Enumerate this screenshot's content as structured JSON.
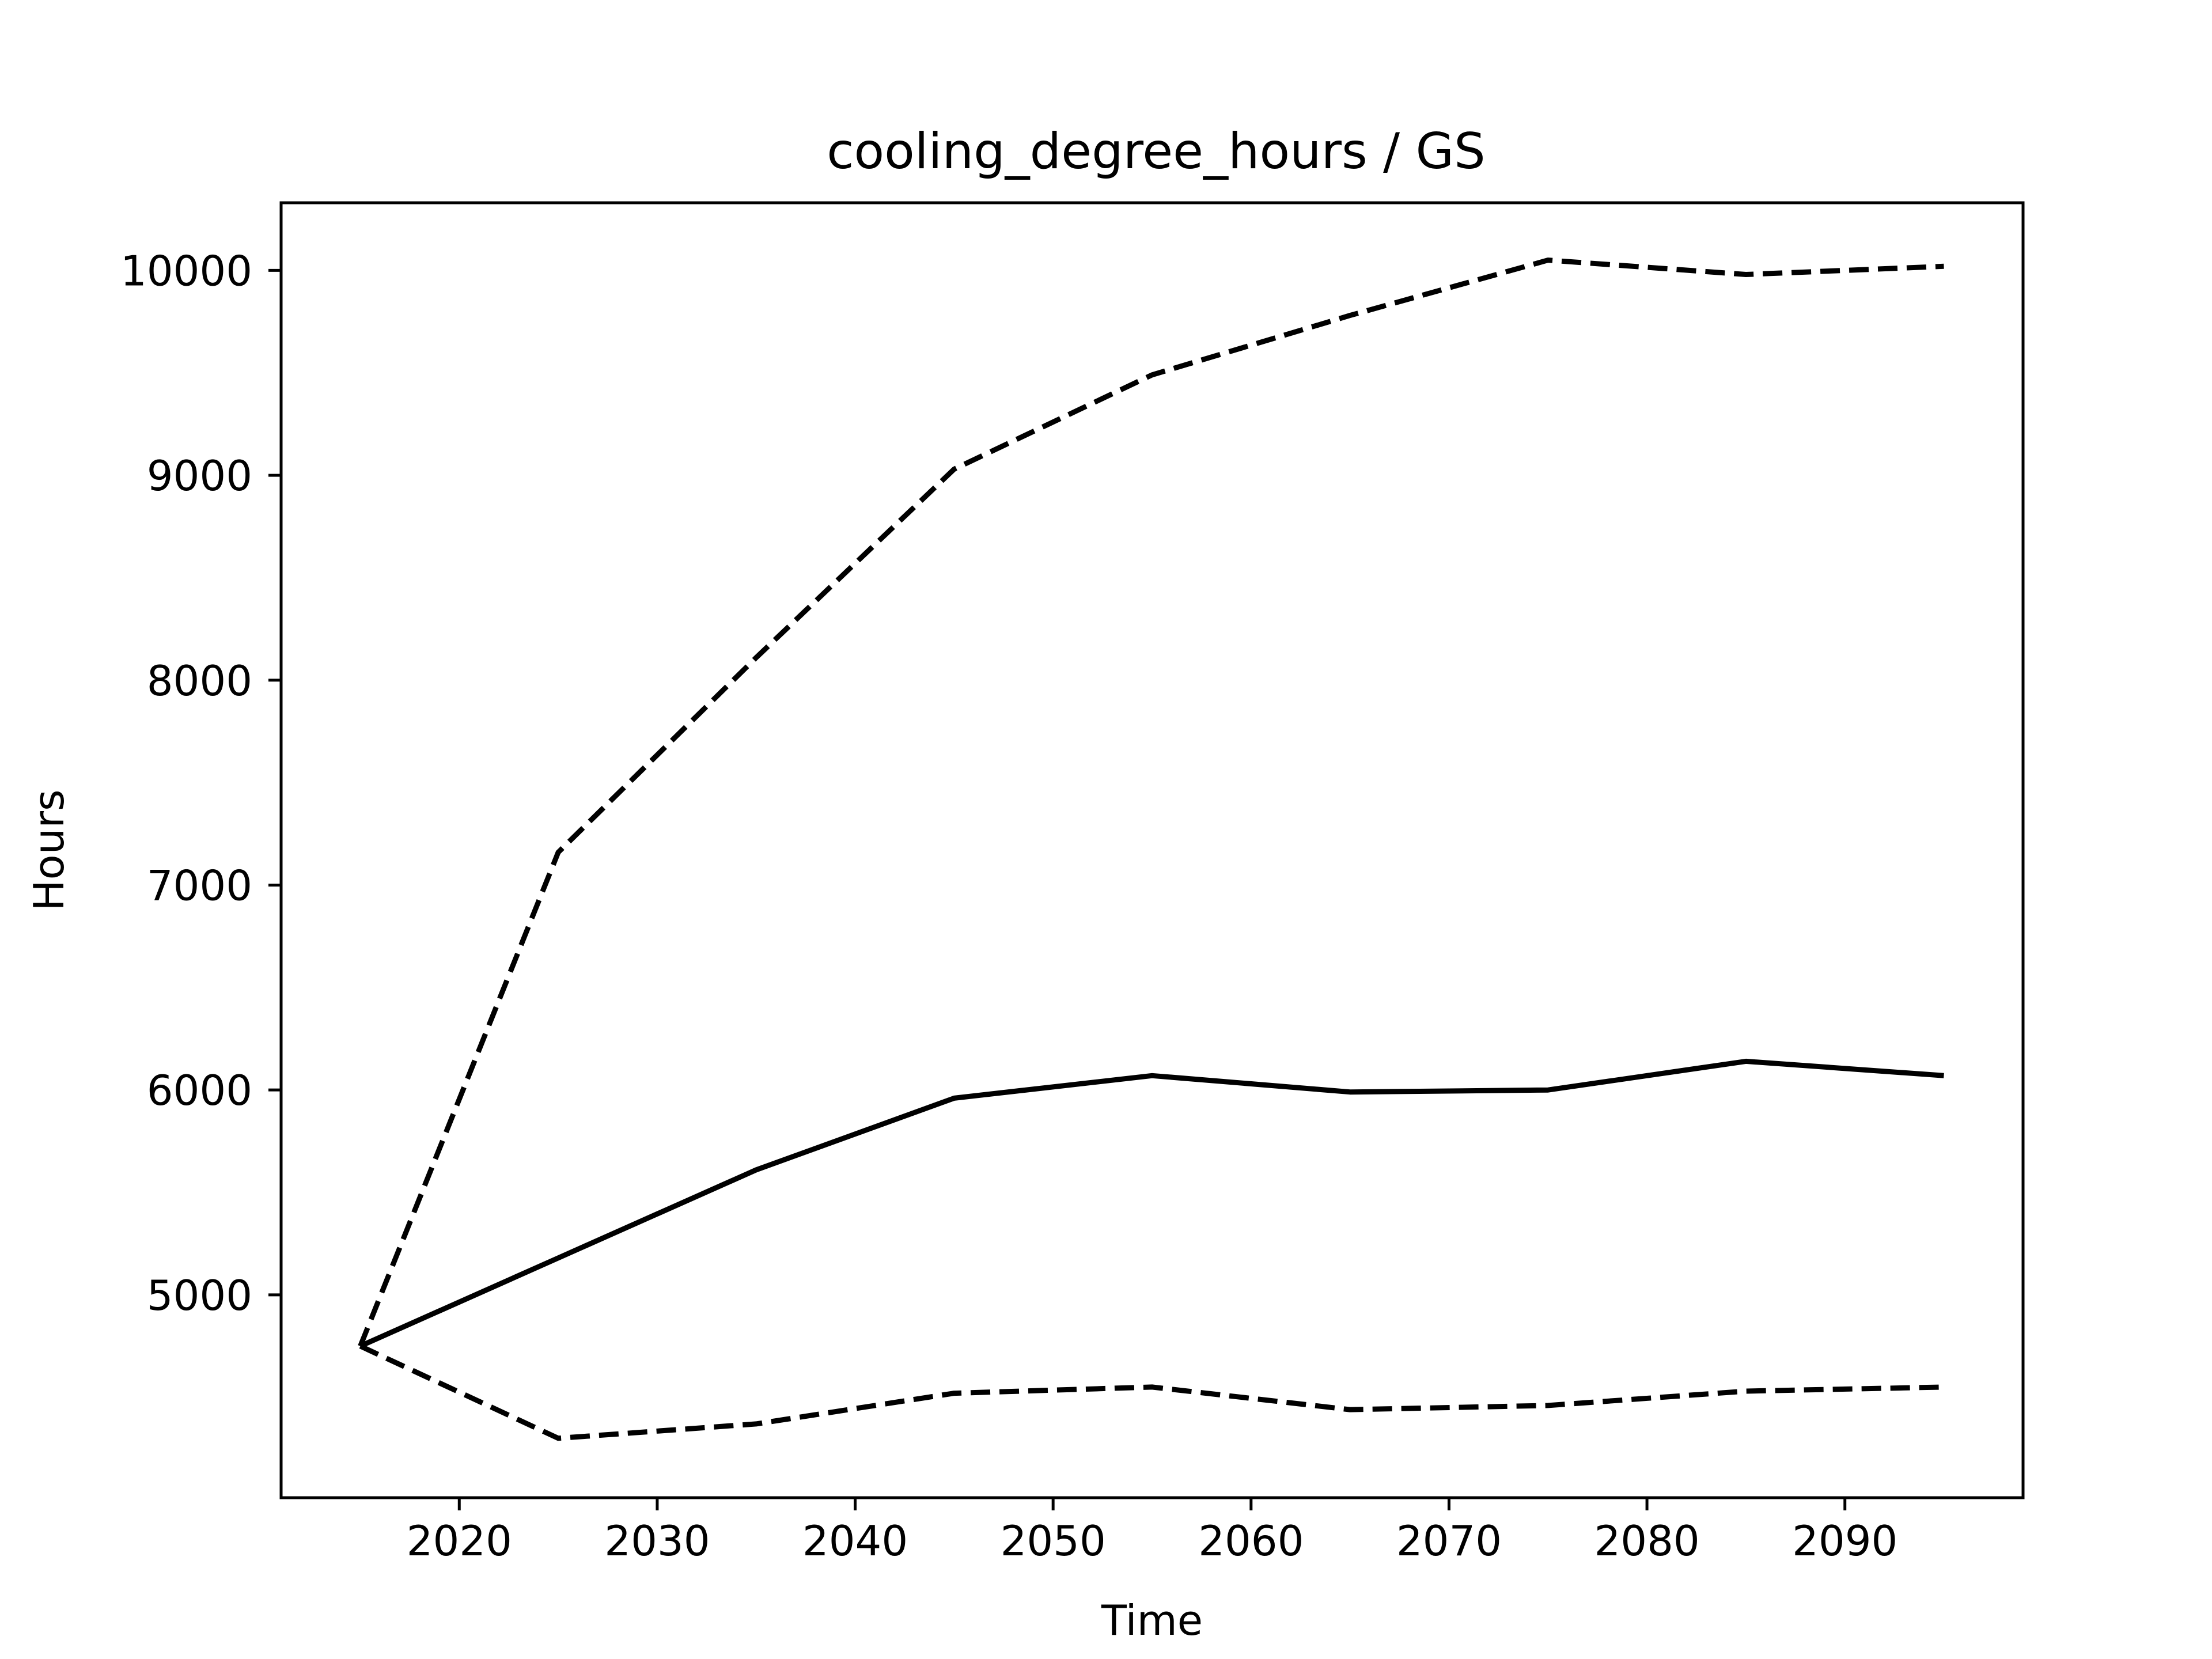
{
  "chart_data": {
    "type": "line",
    "title": "cooling_degree_hours / GS",
    "xlabel": "Time",
    "ylabel": "Hours",
    "xlim": [
      2011,
      2099
    ],
    "ylim": [
      4010,
      10330
    ],
    "x_ticks": [
      2020,
      2030,
      2040,
      2050,
      2060,
      2070,
      2080,
      2090
    ],
    "y_ticks": [
      5000,
      6000,
      7000,
      8000,
      9000,
      10000
    ],
    "x_tick_labels": [
      "2020",
      "2030",
      "2040",
      "2050",
      "2060",
      "2070",
      "2080",
      "2090"
    ],
    "y_tick_labels": [
      "5000",
      "6000",
      "7000",
      "8000",
      "9000",
      "10000"
    ],
    "grid": false,
    "legend": "none",
    "x": [
      2015,
      2025,
      2035,
      2045,
      2055,
      2065,
      2075,
      2085,
      2095
    ],
    "series": [
      {
        "style": "solid",
        "color": "#000000",
        "values": [
          4750,
          5180,
          5610,
          5960,
          6070,
          5990,
          6000,
          6140,
          6070
        ]
      },
      {
        "style": "dashed",
        "color": "#000000",
        "values": [
          4750,
          7160,
          8110,
          9030,
          9490,
          9780,
          10050,
          9980,
          10020
        ]
      },
      {
        "style": "dashed",
        "color": "#000000",
        "values": [
          4750,
          4300,
          4370,
          4520,
          4550,
          4440,
          4460,
          4530,
          4550
        ]
      }
    ]
  }
}
